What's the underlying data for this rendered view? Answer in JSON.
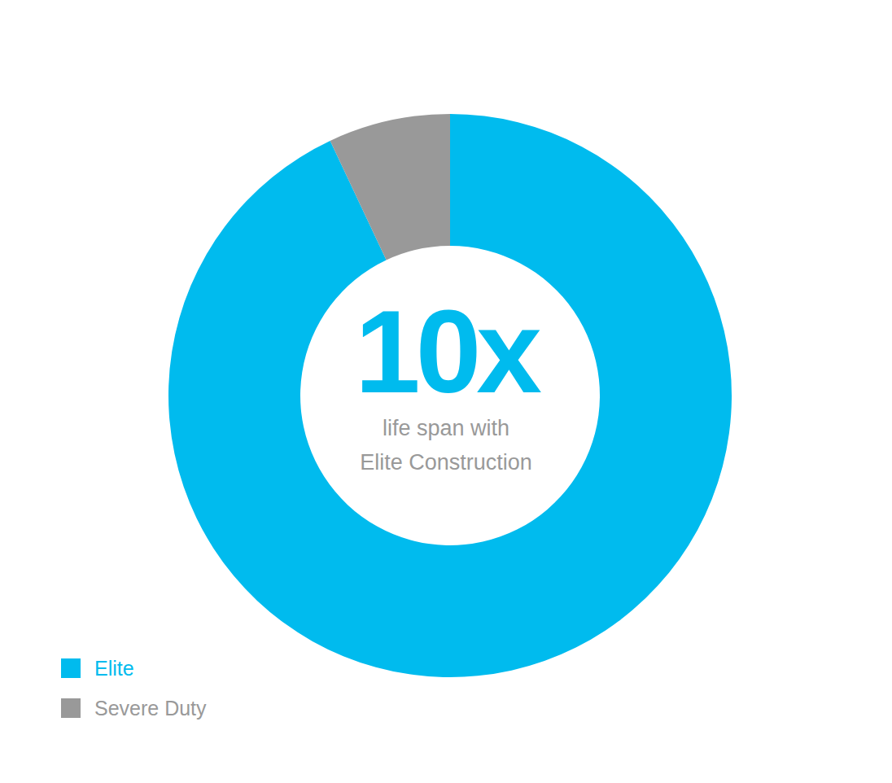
{
  "chart_data": {
    "type": "pie",
    "categories": [
      "Elite",
      "Severe Duty"
    ],
    "values": [
      93,
      7
    ],
    "colors": [
      "#00bbee",
      "#999999"
    ],
    "legend": "lower left",
    "annotations": [
      "10x",
      "life span with",
      "Elite Construction"
    ]
  }
}
